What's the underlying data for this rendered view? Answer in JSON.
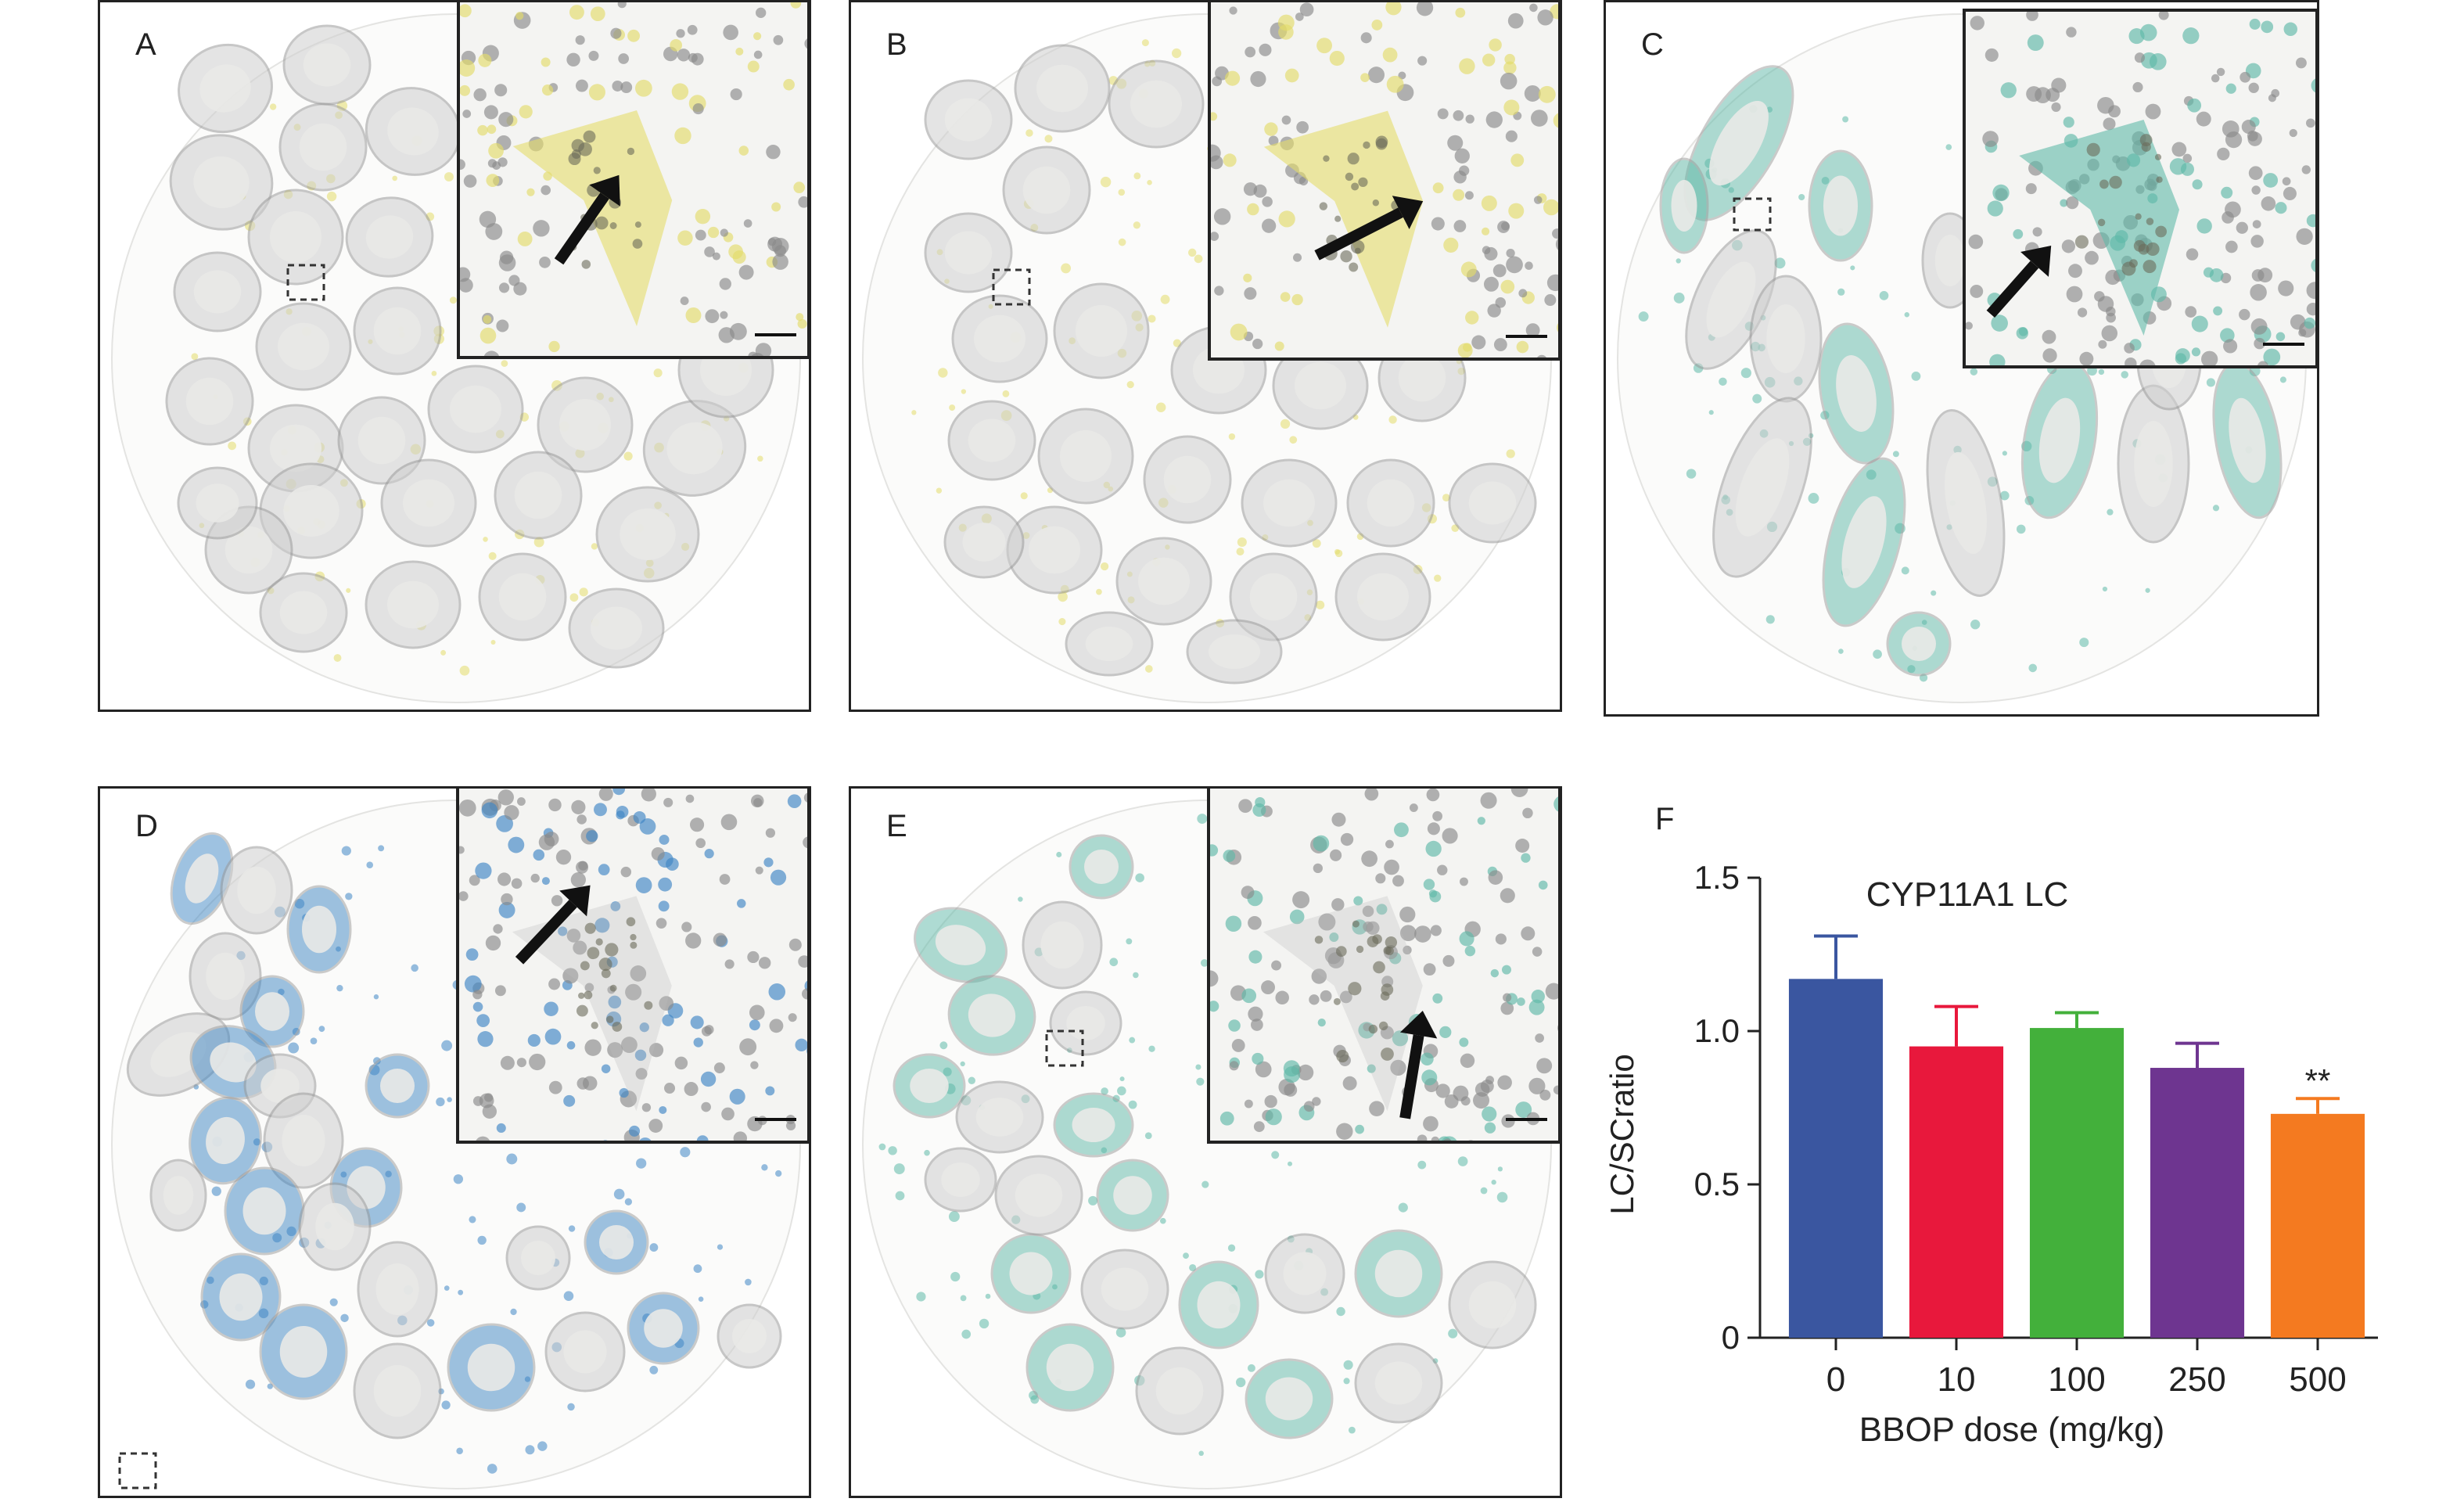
{
  "panels": [
    {
      "label": "A",
      "stain": "yellow"
    },
    {
      "label": "B",
      "stain": "yellow"
    },
    {
      "label": "C",
      "stain": "teal"
    },
    {
      "label": "D",
      "stain": "blue"
    },
    {
      "label": "E",
      "stain": "teal"
    }
  ],
  "chart_label": "F",
  "colors": {
    "stain_yellow": "#e4dc6a",
    "stain_teal": "#5fb9a8",
    "stain_blue": "#3f86c4",
    "tubule_gray": "#cfcfcf"
  },
  "chart_data": {
    "type": "bar",
    "title": "CYP11A1 LC",
    "xlabel": "BBOP dose (mg/kg)",
    "ylabel": "LC/SCratio",
    "categories": [
      "0",
      "10",
      "100",
      "250",
      "500"
    ],
    "values": [
      1.17,
      0.95,
      1.01,
      0.88,
      0.73
    ],
    "errors": [
      0.14,
      0.13,
      0.05,
      0.08,
      0.05
    ],
    "colors": [
      "#3a56a0",
      "#e8183c",
      "#43b03b",
      "#6e3590",
      "#f47a20"
    ],
    "annotations": [
      "",
      "",
      "",
      "",
      "**"
    ],
    "ylim": [
      0,
      1.5
    ],
    "yticks": [
      "0",
      "0.5",
      "1.0",
      "1.5"
    ],
    "grid": false
  }
}
